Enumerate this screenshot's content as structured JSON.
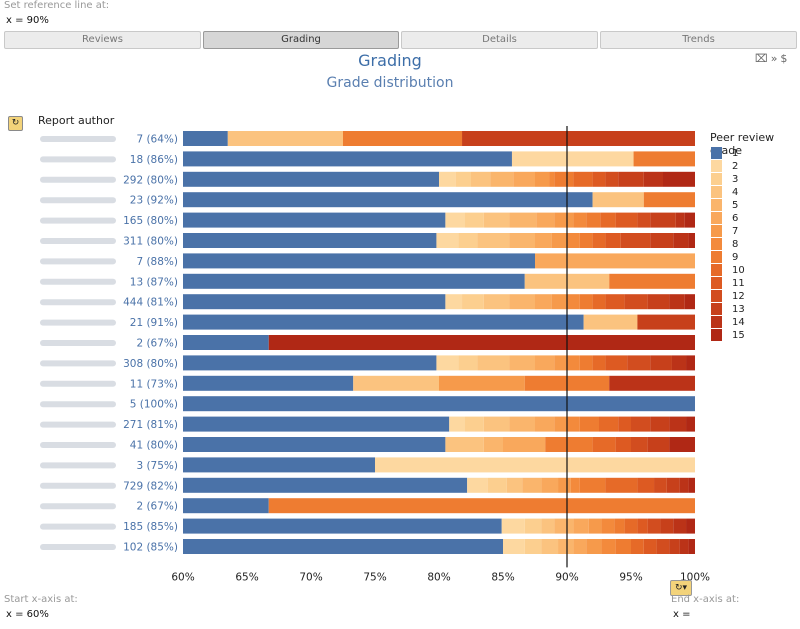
{
  "reference_line": {
    "label": "Set reference line at:",
    "value": "x  = 90%"
  },
  "tabs": [
    "Reviews",
    "Grading",
    "Details",
    "Trends"
  ],
  "active_tab": "Grading",
  "header": {
    "title": "Grading",
    "subtitle": "Grade distribution"
  },
  "icons": {
    "clear": "x-clear-icon",
    "more": "chevrons-icon",
    "help": "help-icon"
  },
  "report_author_label": "Report author",
  "start_axis": {
    "label": "Start x-axis at:",
    "value": "x  = 60%"
  },
  "end_axis": {
    "label": "End x-axis at:",
    "value": "x  ="
  },
  "chart_data": {
    "type": "bar",
    "orientation": "horizontal-stacked",
    "xlim": [
      60,
      100
    ],
    "x_ticks": [
      "60%",
      "65%",
      "70%",
      "75%",
      "80%",
      "85%",
      "90%",
      "95%",
      "100%"
    ],
    "reference_line": 90,
    "legend_title": "Peer review grade",
    "legend_position": "right",
    "grade_labels": [
      "1",
      "2",
      "3",
      "4",
      "5",
      "6",
      "7",
      "8",
      "9",
      "10",
      "11",
      "12",
      "13",
      "14",
      "15"
    ],
    "grade_colors": [
      "#4a72a8",
      "#fdd8a0",
      "#fccf8f",
      "#fbc37f",
      "#fab56c",
      "#f9a85c",
      "#f69a4b",
      "#f38a3c",
      "#ee7c31",
      "#e66a28",
      "#dd5a22",
      "#d24d1f",
      "#c7401b",
      "#bb3318",
      "#b02815"
    ],
    "rows": [
      {
        "label": "7 (64%)",
        "segments": [
          [
            1,
            63.5
          ],
          [
            4,
            72.5
          ],
          [
            9,
            81.8
          ],
          [
            13,
            100
          ]
        ]
      },
      {
        "label": "18 (86%)",
        "segments": [
          [
            1,
            85.7
          ],
          [
            2,
            95.2
          ],
          [
            9,
            100
          ]
        ]
      },
      {
        "label": "292 (80%)",
        "segments": [
          [
            1,
            80
          ],
          [
            2,
            81.3
          ],
          [
            3,
            82.5
          ],
          [
            4,
            84
          ],
          [
            5,
            85.8
          ],
          [
            6,
            87.5
          ],
          [
            7,
            88.6
          ],
          [
            8,
            89
          ],
          [
            9,
            90.5
          ],
          [
            10,
            92
          ],
          [
            11,
            93
          ],
          [
            12,
            94
          ],
          [
            13,
            96
          ],
          [
            14,
            97.5
          ],
          [
            15,
            100
          ]
        ]
      },
      {
        "label": "23 (92%)",
        "segments": [
          [
            1,
            92
          ],
          [
            4,
            96
          ],
          [
            9,
            100
          ]
        ]
      },
      {
        "label": "165 (80%)",
        "segments": [
          [
            1,
            80.5
          ],
          [
            2,
            82
          ],
          [
            3,
            83.5
          ],
          [
            4,
            85.5
          ],
          [
            5,
            87.6
          ],
          [
            6,
            89
          ],
          [
            7,
            90.5
          ],
          [
            8,
            91.5
          ],
          [
            9,
            92.6
          ],
          [
            10,
            93.8
          ],
          [
            11,
            95.5
          ],
          [
            12,
            96.5
          ],
          [
            13,
            98.5
          ],
          [
            14,
            99.2
          ],
          [
            15,
            100
          ]
        ]
      },
      {
        "label": "311 (80%)",
        "segments": [
          [
            1,
            79.8
          ],
          [
            2,
            81.5
          ],
          [
            3,
            83
          ],
          [
            4,
            85.5
          ],
          [
            5,
            87.5
          ],
          [
            6,
            88.8
          ],
          [
            7,
            90
          ],
          [
            8,
            91
          ],
          [
            9,
            92
          ],
          [
            10,
            93
          ],
          [
            11,
            94.2
          ],
          [
            12,
            96.5
          ],
          [
            13,
            98.3
          ],
          [
            14,
            99.5
          ],
          [
            15,
            100
          ]
        ]
      },
      {
        "label": "7 (88%)",
        "segments": [
          [
            1,
            87.5
          ],
          [
            6,
            100
          ]
        ]
      },
      {
        "label": "13 (87%)",
        "segments": [
          [
            1,
            86.7
          ],
          [
            4,
            93.3
          ],
          [
            9,
            100
          ]
        ]
      },
      {
        "label": "444 (81%)",
        "segments": [
          [
            1,
            80.5
          ],
          [
            2,
            81.8
          ],
          [
            3,
            83.5
          ],
          [
            4,
            85.5
          ],
          [
            5,
            87.5
          ],
          [
            6,
            88.8
          ],
          [
            7,
            90
          ],
          [
            8,
            91
          ],
          [
            9,
            92
          ],
          [
            10,
            93
          ],
          [
            11,
            94.5
          ],
          [
            12,
            96.3
          ],
          [
            13,
            98
          ],
          [
            14,
            99.2
          ],
          [
            15,
            100
          ]
        ]
      },
      {
        "label": "21 (91%)",
        "segments": [
          [
            1,
            91.3
          ],
          [
            4,
            95.5
          ],
          [
            13,
            100
          ]
        ]
      },
      {
        "label": "2 (67%)",
        "segments": [
          [
            1,
            66.7
          ],
          [
            15,
            100
          ]
        ]
      },
      {
        "label": "308 (80%)",
        "segments": [
          [
            1,
            79.8
          ],
          [
            2,
            81.5
          ],
          [
            3,
            83
          ],
          [
            4,
            85.5
          ],
          [
            5,
            87.5
          ],
          [
            6,
            89
          ],
          [
            7,
            90
          ],
          [
            8,
            91
          ],
          [
            9,
            92
          ],
          [
            10,
            93
          ],
          [
            11,
            94.7
          ],
          [
            12,
            96.5
          ],
          [
            13,
            98.2
          ],
          [
            14,
            99.3
          ],
          [
            15,
            100
          ]
        ]
      },
      {
        "label": "11 (73%)",
        "segments": [
          [
            1,
            73.3
          ],
          [
            4,
            80
          ],
          [
            7,
            86.7
          ],
          [
            9,
            93.3
          ],
          [
            14,
            100
          ]
        ]
      },
      {
        "label": "5 (100%)",
        "segments": [
          [
            1,
            100
          ]
        ]
      },
      {
        "label": "271 (81%)",
        "segments": [
          [
            1,
            80.8
          ],
          [
            2,
            82
          ],
          [
            3,
            83.5
          ],
          [
            4,
            85.5
          ],
          [
            5,
            87.5
          ],
          [
            6,
            89
          ],
          [
            7,
            90
          ],
          [
            8,
            91
          ],
          [
            9,
            92.5
          ],
          [
            10,
            94
          ],
          [
            11,
            95
          ],
          [
            12,
            96.5
          ],
          [
            13,
            98
          ],
          [
            14,
            99.3
          ],
          [
            15,
            100
          ]
        ]
      },
      {
        "label": "41 (80%)",
        "segments": [
          [
            1,
            80.5
          ],
          [
            4,
            83.5
          ],
          [
            5,
            85
          ],
          [
            6,
            88.3
          ],
          [
            9,
            92
          ],
          [
            10,
            93.8
          ],
          [
            11,
            95
          ],
          [
            12,
            96.3
          ],
          [
            13,
            98
          ],
          [
            15,
            100
          ]
        ]
      },
      {
        "label": "3 (75%)",
        "segments": [
          [
            1,
            75
          ],
          [
            2,
            100
          ]
        ]
      },
      {
        "label": "729 (82%)",
        "segments": [
          [
            1,
            82.2
          ],
          [
            2,
            83.8
          ],
          [
            3,
            85.3
          ],
          [
            4,
            86.5
          ],
          [
            5,
            88
          ],
          [
            6,
            89.3
          ],
          [
            7,
            90.3
          ],
          [
            8,
            91
          ],
          [
            9,
            93
          ],
          [
            10,
            95.5
          ],
          [
            11,
            96.8
          ],
          [
            12,
            97.8
          ],
          [
            13,
            98.8
          ],
          [
            14,
            99.5
          ],
          [
            15,
            100
          ]
        ]
      },
      {
        "label": "2 (67%)",
        "segments": [
          [
            1,
            66.7
          ],
          [
            9,
            100
          ]
        ]
      },
      {
        "label": "185 (85%)",
        "segments": [
          [
            1,
            84.9
          ],
          [
            2,
            86.7
          ],
          [
            3,
            88
          ],
          [
            4,
            89
          ],
          [
            5,
            90.5
          ],
          [
            6,
            91.7
          ],
          [
            7,
            92.7
          ],
          [
            8,
            93.7
          ],
          [
            9,
            94.5
          ],
          [
            10,
            95.5
          ],
          [
            11,
            96.3
          ],
          [
            12,
            97.3
          ],
          [
            13,
            98.3
          ],
          [
            14,
            99.3
          ],
          [
            15,
            100
          ]
        ]
      },
      {
        "label": "102 (85%)",
        "segments": [
          [
            1,
            85
          ],
          [
            2,
            86.7
          ],
          [
            3,
            88
          ],
          [
            4,
            89.3
          ],
          [
            5,
            90.5
          ],
          [
            6,
            91.5
          ],
          [
            7,
            92.7
          ],
          [
            8,
            93.8
          ],
          [
            9,
            95
          ],
          [
            10,
            96
          ],
          [
            11,
            97
          ],
          [
            12,
            98
          ],
          [
            13,
            98.8
          ],
          [
            14,
            99.5
          ],
          [
            15,
            100
          ]
        ]
      }
    ]
  }
}
